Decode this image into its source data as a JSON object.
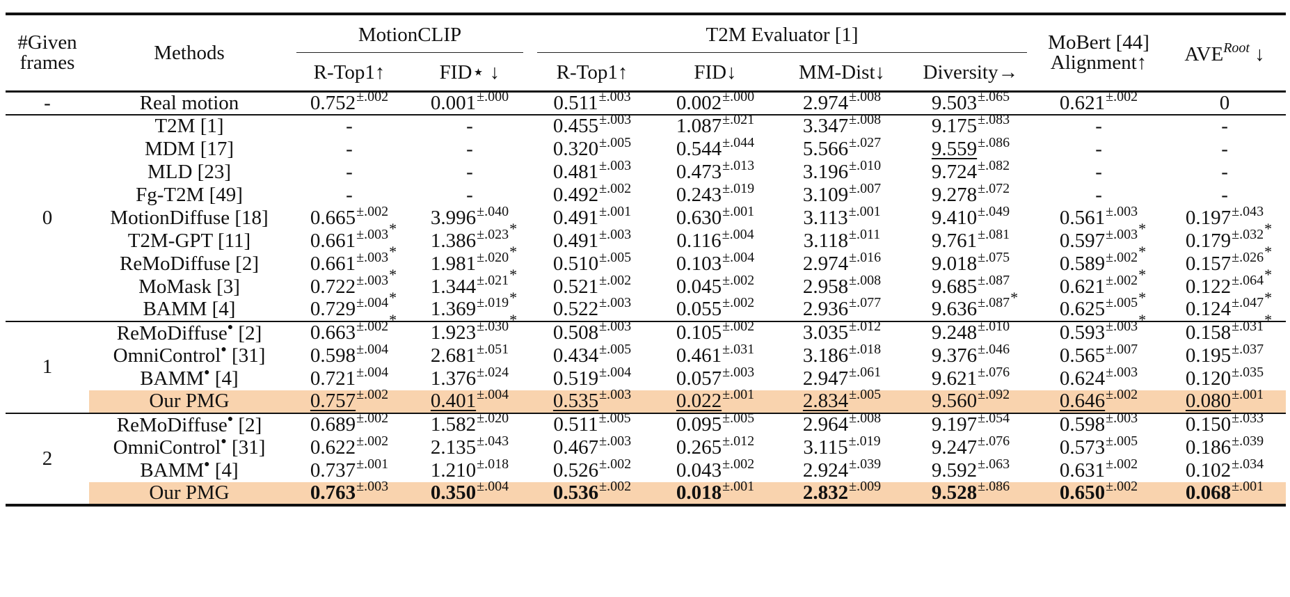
{
  "header": {
    "given_frames": [
      "#Given",
      "frames"
    ],
    "methods": "Methods",
    "motionclip": "MotionCLIP",
    "t2m_eval": "T2M Evaluator [1]",
    "mobert": [
      "MoBert [44]",
      "Alignment↑"
    ],
    "ave": "AVE",
    "ave_sup": "Root",
    "ave_arrow": "↓",
    "sub": [
      "R-Top1↑",
      "FID⋆ ↓",
      "R-Top1↑",
      "FID↓",
      "MM-Dist↓",
      "Diversity→"
    ]
  },
  "sections": [
    {
      "frames": "-",
      "rows": [
        {
          "method": "Real motion",
          "cells": [
            {
              "v": "0.752",
              "s": "±.002"
            },
            {
              "v": "0.001",
              "s": "±.000"
            },
            {
              "v": "0.511",
              "s": "±.003"
            },
            {
              "v": "0.002",
              "s": "±.000"
            },
            {
              "v": "2.974",
              "s": "±.008"
            },
            {
              "v": "9.503",
              "s": "±.065"
            },
            {
              "v": "0.621",
              "s": "±.002"
            },
            {
              "v": "0"
            }
          ]
        }
      ]
    },
    {
      "frames": "0",
      "rows": [
        {
          "method": "T2M [1]",
          "cells": [
            {
              "v": "-"
            },
            {
              "v": "-"
            },
            {
              "v": "0.455",
              "s": "±.003"
            },
            {
              "v": "1.087",
              "s": "±.021"
            },
            {
              "v": "3.347",
              "s": "±.008"
            },
            {
              "v": "9.175",
              "s": "±.083"
            },
            {
              "v": "-"
            },
            {
              "v": "-"
            }
          ]
        },
        {
          "method": "MDM [17]",
          "cells": [
            {
              "v": "-"
            },
            {
              "v": "-"
            },
            {
              "v": "0.320",
              "s": "±.005"
            },
            {
              "v": "0.544",
              "s": "±.044"
            },
            {
              "v": "5.566",
              "s": "±.027"
            },
            {
              "v": "9.559",
              "s": "±.086",
              "u": true
            },
            {
              "v": "-"
            },
            {
              "v": "-"
            }
          ]
        },
        {
          "method": "MLD [23]",
          "cells": [
            {
              "v": "-"
            },
            {
              "v": "-"
            },
            {
              "v": "0.481",
              "s": "±.003"
            },
            {
              "v": "0.473",
              "s": "±.013"
            },
            {
              "v": "3.196",
              "s": "±.010"
            },
            {
              "v": "9.724",
              "s": "±.082"
            },
            {
              "v": "-"
            },
            {
              "v": "-"
            }
          ]
        },
        {
          "method": "Fg-T2M [49]",
          "cells": [
            {
              "v": "-"
            },
            {
              "v": "-"
            },
            {
              "v": "0.492",
              "s": "±.002"
            },
            {
              "v": "0.243",
              "s": "±.019"
            },
            {
              "v": "3.109",
              "s": "±.007"
            },
            {
              "v": "9.278",
              "s": "±.072"
            },
            {
              "v": "-"
            },
            {
              "v": "-"
            }
          ]
        },
        {
          "method": "MotionDiffuse [18]",
          "cells": [
            {
              "v": "0.665",
              "s": "±.002",
              "b": "*"
            },
            {
              "v": "3.996",
              "s": "±.040",
              "b": "*"
            },
            {
              "v": "0.491",
              "s": "±.001"
            },
            {
              "v": "0.630",
              "s": "±.001"
            },
            {
              "v": "3.113",
              "s": "±.001"
            },
            {
              "v": "9.410",
              "s": "±.049"
            },
            {
              "v": "0.561",
              "s": "±.003",
              "b": "*"
            },
            {
              "v": "0.197",
              "s": "±.043",
              "b": "*"
            }
          ]
        },
        {
          "method": "T2M-GPT [11]",
          "cells": [
            {
              "v": "0.661",
              "s": "±.003",
              "b": "*"
            },
            {
              "v": "1.386",
              "s": "±.023",
              "b": "*"
            },
            {
              "v": "0.491",
              "s": "±.003"
            },
            {
              "v": "0.116",
              "s": "±.004"
            },
            {
              "v": "3.118",
              "s": "±.011"
            },
            {
              "v": "9.761",
              "s": "±.081"
            },
            {
              "v": "0.597",
              "s": "±.003",
              "b": "*"
            },
            {
              "v": "0.179",
              "s": "±.032",
              "b": "*"
            }
          ]
        },
        {
          "method": "ReMoDiffuse [2]",
          "cells": [
            {
              "v": "0.661",
              "s": "±.003",
              "b": "*"
            },
            {
              "v": "1.981",
              "s": "±.020",
              "b": "*"
            },
            {
              "v": "0.510",
              "s": "±.005"
            },
            {
              "v": "0.103",
              "s": "±.004"
            },
            {
              "v": "2.974",
              "s": "±.016"
            },
            {
              "v": "9.018",
              "s": "±.075"
            },
            {
              "v": "0.589",
              "s": "±.002",
              "b": "*"
            },
            {
              "v": "0.157",
              "s": "±.026",
              "b": "*"
            }
          ]
        },
        {
          "method": "MoMask [3]",
          "cells": [
            {
              "v": "0.722",
              "s": "±.003",
              "b": "*"
            },
            {
              "v": "1.344",
              "s": "±.021",
              "b": "*"
            },
            {
              "v": "0.521",
              "s": "±.002"
            },
            {
              "v": "0.045",
              "s": "±.002"
            },
            {
              "v": "2.958",
              "s": "±.008"
            },
            {
              "v": "9.685",
              "s": "±.087",
              "b": "*"
            },
            {
              "v": "0.621",
              "s": "±.002",
              "b": "*"
            },
            {
              "v": "0.122",
              "s": "±.064",
              "b": "*"
            }
          ]
        },
        {
          "method": "BAMM [4]",
          "cells": [
            {
              "v": "0.729",
              "s": "±.004",
              "b": "*"
            },
            {
              "v": "1.369",
              "s": "±.019",
              "b": "*"
            },
            {
              "v": "0.522",
              "s": "±.003"
            },
            {
              "v": "0.055",
              "s": "±.002"
            },
            {
              "v": "2.936",
              "s": "±.077"
            },
            {
              "v": "9.636",
              "s": "±.087"
            },
            {
              "v": "0.625",
              "s": "±.005",
              "b": "*"
            },
            {
              "v": "0.124",
              "s": "±.047",
              "b": "*"
            }
          ]
        }
      ]
    },
    {
      "frames": "1",
      "rows": [
        {
          "method": "ReMoDiffuse",
          "dot": "●",
          "ref": "[2]",
          "cells": [
            {
              "v": "0.663",
              "s": "±.002"
            },
            {
              "v": "1.923",
              "s": "±.030"
            },
            {
              "v": "0.508",
              "s": "±.003"
            },
            {
              "v": "0.105",
              "s": "±.002"
            },
            {
              "v": "3.035",
              "s": "±.012"
            },
            {
              "v": "9.248",
              "s": "±.010"
            },
            {
              "v": "0.593",
              "s": "±.003"
            },
            {
              "v": "0.158",
              "s": "±.031"
            }
          ]
        },
        {
          "method": "OmniControl",
          "dot": "●",
          "ref": "[31]",
          "cells": [
            {
              "v": "0.598",
              "s": "±.004"
            },
            {
              "v": "2.681",
              "s": "±.051"
            },
            {
              "v": "0.434",
              "s": "±.005"
            },
            {
              "v": "0.461",
              "s": "±.031"
            },
            {
              "v": "3.186",
              "s": "±.018"
            },
            {
              "v": "9.376",
              "s": "±.046"
            },
            {
              "v": "0.565",
              "s": "±.007"
            },
            {
              "v": "0.195",
              "s": "±.037"
            }
          ]
        },
        {
          "method": "BAMM",
          "dot": "●",
          "ref": "[4]",
          "cells": [
            {
              "v": "0.721",
              "s": "±.004"
            },
            {
              "v": "1.376",
              "s": "±.024"
            },
            {
              "v": "0.519",
              "s": "±.004"
            },
            {
              "v": "0.057",
              "s": "±.003"
            },
            {
              "v": "2.947",
              "s": "±.061"
            },
            {
              "v": "9.621",
              "s": "±.076"
            },
            {
              "v": "0.624",
              "s": "±.003"
            },
            {
              "v": "0.120",
              "s": "±.035"
            }
          ]
        },
        {
          "method": "Our PMG",
          "hl": true,
          "cells": [
            {
              "v": "0.757",
              "s": "±.002",
              "u": true
            },
            {
              "v": "0.401",
              "s": "±.004",
              "u": true
            },
            {
              "v": "0.535",
              "s": "±.003",
              "u": true
            },
            {
              "v": "0.022",
              "s": "±.001",
              "u": true
            },
            {
              "v": "2.834",
              "s": "±.005",
              "u": true
            },
            {
              "v": "9.560",
              "s": "±.092"
            },
            {
              "v": "0.646",
              "s": "±.002",
              "u": true
            },
            {
              "v": "0.080",
              "s": "±.001",
              "u": true
            }
          ]
        }
      ]
    },
    {
      "frames": "2",
      "rows": [
        {
          "method": "ReMoDiffuse",
          "dot": "●",
          "ref": "[2]",
          "cells": [
            {
              "v": "0.689",
              "s": "±.002"
            },
            {
              "v": "1.582",
              "s": "±.020"
            },
            {
              "v": "0.511",
              "s": "±.005"
            },
            {
              "v": "0.095",
              "s": "±.005"
            },
            {
              "v": "2.964",
              "s": "±.008"
            },
            {
              "v": "9.197",
              "s": "±.054"
            },
            {
              "v": "0.598",
              "s": "±.003"
            },
            {
              "v": "0.150",
              "s": "±.033"
            }
          ]
        },
        {
          "method": "OmniControl",
          "dot": "●",
          "ref": "[31]",
          "cells": [
            {
              "v": "0.622",
              "s": "±.002"
            },
            {
              "v": "2.135",
              "s": "±.043"
            },
            {
              "v": "0.467",
              "s": "±.003"
            },
            {
              "v": "0.265",
              "s": "±.012"
            },
            {
              "v": "3.115",
              "s": "±.019"
            },
            {
              "v": "9.247",
              "s": "±.076"
            },
            {
              "v": "0.573",
              "s": "±.005"
            },
            {
              "v": "0.186",
              "s": "±.039"
            }
          ]
        },
        {
          "method": "BAMM",
          "dot": "●",
          "ref": "[4]",
          "cells": [
            {
              "v": "0.737",
              "s": "±.001"
            },
            {
              "v": "1.210",
              "s": "±.018"
            },
            {
              "v": "0.526",
              "s": "±.002"
            },
            {
              "v": "0.043",
              "s": "±.002"
            },
            {
              "v": "2.924",
              "s": "±.039"
            },
            {
              "v": "9.592",
              "s": "±.063"
            },
            {
              "v": "0.631",
              "s": "±.002"
            },
            {
              "v": "0.102",
              "s": "±.034"
            }
          ]
        },
        {
          "method": "Our PMG",
          "hl": true,
          "bold": true,
          "cells": [
            {
              "v": "0.763",
              "s": "±.003"
            },
            {
              "v": "0.350",
              "s": "±.004"
            },
            {
              "v": "0.536",
              "s": "±.002"
            },
            {
              "v": "0.018",
              "s": "±.001"
            },
            {
              "v": "2.832",
              "s": "±.009"
            },
            {
              "v": "9.528",
              "s": "±.086"
            },
            {
              "v": "0.650",
              "s": "±.002"
            },
            {
              "v": "0.068",
              "s": "±.001"
            }
          ]
        }
      ]
    }
  ]
}
